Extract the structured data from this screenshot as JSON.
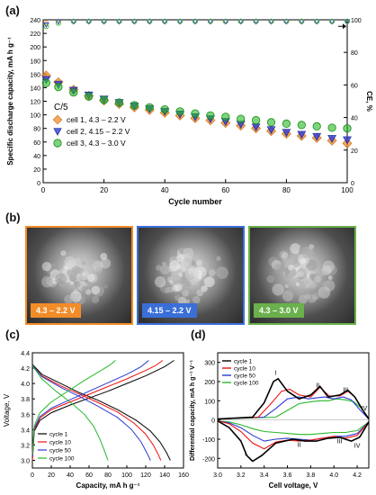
{
  "colors": {
    "orange": "#f28c28",
    "blue": "#2b39d6",
    "green": "#28b828",
    "black": "#000000",
    "gray": "#888888"
  },
  "panel_labels": {
    "a": "(a)",
    "b": "(b)",
    "c": "(c)",
    "d": "(d)"
  },
  "sem": {
    "images": [
      {
        "label": "4.3 – 2.2 V",
        "color": "#f28c28"
      },
      {
        "label": "4.15 – 2.2 V",
        "color": "#3a6fd8"
      },
      {
        "label": "4.3 – 3.0 V",
        "color": "#6ab04c"
      }
    ]
  },
  "chart_data": [
    {
      "type": "scatter",
      "panel": "a",
      "xlabel": "Cycle number",
      "ylabel": "Specific discharge capacity, mA h g⁻¹",
      "y2label": "CE, %",
      "xlim": [
        0,
        100
      ],
      "ylim": [
        0,
        240
      ],
      "y2lim": [
        0,
        100
      ],
      "xticks": [
        0,
        20,
        40,
        60,
        80,
        100
      ],
      "yticks": [
        0,
        20,
        40,
        60,
        80,
        100,
        120,
        140,
        160,
        180,
        200,
        220,
        240
      ],
      "y2ticks": [
        0,
        20,
        40,
        60,
        80,
        100
      ],
      "rate_label": "C/5",
      "legend_position": "bottom-left",
      "series": [
        {
          "name": "cell 1, 4.3 – 2.2 V",
          "color": "#f28c28",
          "marker": "diamond",
          "x": [
            1,
            5,
            10,
            15,
            20,
            25,
            30,
            35,
            40,
            45,
            50,
            55,
            60,
            65,
            70,
            75,
            80,
            85,
            90,
            95,
            100
          ],
          "y": [
            158,
            148,
            137,
            128,
            121,
            116,
            111,
            107,
            103,
            99,
            95,
            92,
            88,
            84,
            80,
            76,
            72,
            69,
            66,
            62,
            58
          ],
          "ce": [
            98,
            99,
            99,
            99,
            99,
            99,
            99,
            99,
            99,
            99,
            99,
            99,
            99,
            99,
            99,
            99,
            99,
            99,
            99,
            99,
            99
          ]
        },
        {
          "name": "cell 2, 4.15 – 2.2 V",
          "color": "#2b39d6",
          "marker": "triangle-down",
          "x": [
            1,
            5,
            10,
            15,
            20,
            25,
            30,
            35,
            40,
            45,
            50,
            55,
            60,
            65,
            70,
            75,
            80,
            85,
            90,
            95,
            100
          ],
          "y": [
            152,
            145,
            136,
            129,
            123,
            118,
            113,
            109,
            105,
            101,
            97,
            94,
            90,
            86,
            82,
            78,
            74,
            71,
            68,
            65,
            63
          ],
          "ce": [
            97,
            99,
            99,
            99,
            99,
            99,
            99,
            99,
            99,
            99,
            99,
            99,
            99,
            99,
            99,
            99,
            99,
            99,
            99,
            99,
            99
          ]
        },
        {
          "name": "cell 3, 4.3 – 3.0 V",
          "color": "#28b828",
          "marker": "circle",
          "x": [
            1,
            5,
            10,
            15,
            20,
            25,
            30,
            35,
            40,
            45,
            50,
            55,
            60,
            65,
            70,
            75,
            80,
            85,
            90,
            95,
            100
          ],
          "y": [
            147,
            141,
            133,
            127,
            122,
            118,
            114,
            111,
            108,
            105,
            102,
            99,
            97,
            94,
            92,
            89,
            87,
            85,
            83,
            81,
            80
          ],
          "ce": [
            96,
            98,
            99,
            99,
            99,
            99,
            99,
            99,
            99,
            99,
            99,
            99,
            99,
            99,
            99,
            99,
            99,
            99,
            99,
            99,
            99
          ]
        }
      ]
    },
    {
      "type": "line",
      "panel": "c",
      "xlabel": "Capacity, mA h g⁻¹",
      "ylabel": "Voltage, V",
      "xlim": [
        0,
        160
      ],
      "ylim": [
        2.9,
        4.4
      ],
      "xticks": [
        0,
        20,
        40,
        60,
        80,
        100,
        120,
        140,
        160
      ],
      "yticks": [
        3.0,
        3.2,
        3.4,
        3.6,
        3.8,
        4.0,
        4.2,
        4.4
      ],
      "legend_position": "bottom-left",
      "series": [
        {
          "name": "cycle 1",
          "color": "#000000",
          "charge": {
            "x": [
              0,
              2,
              8,
              20,
              40,
              60,
              80,
              100,
              120,
              140,
              150
            ],
            "y": [
              3.0,
              3.38,
              3.52,
              3.62,
              3.72,
              3.81,
              3.9,
              4.0,
              4.1,
              4.22,
              4.3
            ]
          },
          "discharge": {
            "x": [
              0,
              10,
              30,
              50,
              70,
              90,
              110,
              125,
              135,
              142,
              146
            ],
            "y": [
              4.25,
              4.12,
              4.0,
              3.88,
              3.78,
              3.66,
              3.52,
              3.38,
              3.24,
              3.1,
              3.0
            ]
          }
        },
        {
          "name": "cycle 10",
          "color": "#ee1111",
          "charge": {
            "x": [
              0,
              2,
              8,
              20,
              40,
              60,
              80,
              100,
              120,
              130,
              138
            ],
            "y": [
              3.0,
              3.4,
              3.55,
              3.66,
              3.76,
              3.86,
              3.96,
              4.06,
              4.17,
              4.23,
              4.3
            ]
          },
          "discharge": {
            "x": [
              0,
              10,
              30,
              50,
              70,
              90,
              108,
              120,
              128,
              133,
              136
            ],
            "y": [
              4.24,
              4.1,
              3.97,
              3.86,
              3.75,
              3.63,
              3.48,
              3.34,
              3.2,
              3.08,
              3.0
            ]
          }
        },
        {
          "name": "cycle 50",
          "color": "#2b39d6",
          "charge": {
            "x": [
              0,
              2,
              8,
              20,
              40,
              60,
              80,
              100,
              115,
              123
            ],
            "y": [
              3.05,
              3.42,
              3.57,
              3.68,
              3.79,
              3.9,
              4.01,
              4.12,
              4.22,
              4.3
            ]
          },
          "discharge": {
            "x": [
              0,
              10,
              30,
              50,
              70,
              90,
              105,
              115,
              121,
              125
            ],
            "y": [
              4.24,
              4.09,
              3.95,
              3.83,
              3.7,
              3.56,
              3.4,
              3.24,
              3.1,
              3.0
            ]
          }
        },
        {
          "name": "cycle 100",
          "color": "#28b828",
          "charge": {
            "x": [
              0,
              2,
              8,
              20,
              40,
              55,
              70,
              82,
              88
            ],
            "y": [
              3.08,
              3.45,
              3.62,
              3.76,
              3.92,
              4.04,
              4.15,
              4.24,
              4.3
            ]
          },
          "discharge": {
            "x": [
              0,
              10,
              25,
              40,
              55,
              65,
              72,
              77,
              80
            ],
            "y": [
              4.23,
              4.06,
              3.9,
              3.76,
              3.6,
              3.44,
              3.26,
              3.1,
              3.0
            ]
          }
        }
      ]
    },
    {
      "type": "line",
      "panel": "d",
      "xlabel": "Cell voltage, V",
      "ylabel": "Differential capacity, mA h g⁻¹ V⁻¹",
      "xlim": [
        3.0,
        4.3
      ],
      "ylim": [
        -250,
        350
      ],
      "xticks": [
        3.0,
        3.2,
        3.4,
        3.6,
        3.8,
        4.0,
        4.2
      ],
      "yticks": [
        -200,
        -100,
        0,
        100,
        200,
        300
      ],
      "legend_position": "top-left",
      "annotations": [
        {
          "text": "I",
          "x": 3.5,
          "y": 235
        },
        {
          "text": "II",
          "x": 3.86,
          "y": 170
        },
        {
          "text": "III",
          "x": 4.1,
          "y": 145
        },
        {
          "text": "IV",
          "x": 4.26,
          "y": 50
        },
        {
          "text": "I",
          "x": 3.24,
          "y": -185
        },
        {
          "text": "II",
          "x": 3.7,
          "y": -140
        },
        {
          "text": "III",
          "x": 4.05,
          "y": -120
        },
        {
          "text": "IV",
          "x": 4.2,
          "y": -145
        }
      ],
      "series": [
        {
          "name": "cycle 1",
          "color": "#000000",
          "charge": {
            "x": [
              3.0,
              3.3,
              3.4,
              3.48,
              3.52,
              3.6,
              3.7,
              3.8,
              3.88,
              3.95,
              4.05,
              4.12,
              4.18,
              4.24,
              4.3
            ],
            "y": [
              5,
              15,
              90,
              200,
              215,
              150,
              110,
              130,
              175,
              120,
              130,
              155,
              120,
              60,
              5
            ]
          },
          "discharge": {
            "x": [
              4.3,
              4.22,
              4.15,
              4.05,
              3.95,
              3.85,
              3.75,
              3.65,
              3.5,
              3.38,
              3.3,
              3.25,
              3.2,
              3.1,
              3.0
            ],
            "y": [
              -10,
              -90,
              -110,
              -90,
              -95,
              -110,
              -110,
              -100,
              -120,
              -185,
              -215,
              -185,
              -110,
              -40,
              -5
            ]
          }
        },
        {
          "name": "cycle 10",
          "color": "#ee1111",
          "charge": {
            "x": [
              3.0,
              3.35,
              3.45,
              3.55,
              3.62,
              3.7,
              3.8,
              3.88,
              3.96,
              4.05,
              4.12,
              4.18,
              4.24,
              4.3
            ],
            "y": [
              5,
              15,
              80,
              150,
              160,
              130,
              120,
              170,
              125,
              125,
              150,
              120,
              60,
              5
            ]
          },
          "discharge": {
            "x": [
              4.3,
              4.2,
              4.1,
              4.0,
              3.9,
              3.8,
              3.7,
              3.6,
              3.5,
              3.4,
              3.3,
              3.2,
              3.1,
              3.0
            ],
            "y": [
              -10,
              -80,
              -95,
              -85,
              -95,
              -105,
              -110,
              -105,
              -115,
              -150,
              -120,
              -60,
              -20,
              -5
            ]
          }
        },
        {
          "name": "cycle 50",
          "color": "#2b39d6",
          "charge": {
            "x": [
              3.0,
              3.4,
              3.5,
              3.6,
              3.7,
              3.78,
              3.85,
              3.92,
              4.0,
              4.08,
              4.15,
              4.22,
              4.3
            ],
            "y": [
              5,
              15,
              60,
              110,
              120,
              110,
              115,
              120,
              110,
              120,
              105,
              55,
              5
            ]
          },
          "discharge": {
            "x": [
              4.3,
              4.2,
              4.1,
              4.0,
              3.9,
              3.8,
              3.7,
              3.6,
              3.5,
              3.4,
              3.3,
              3.2,
              3.1,
              3.0
            ],
            "y": [
              -10,
              -70,
              -85,
              -85,
              -95,
              -105,
              -100,
              -95,
              -100,
              -110,
              -80,
              -40,
              -15,
              -5
            ]
          }
        },
        {
          "name": "cycle 100",
          "color": "#28b828",
          "charge": {
            "x": [
              3.0,
              3.5,
              3.6,
              3.7,
              3.8,
              3.88,
              3.95,
              4.02,
              4.1,
              4.17,
              4.24,
              4.3
            ],
            "y": [
              5,
              15,
              50,
              85,
              95,
              100,
              100,
              110,
              105,
              95,
              60,
              5
            ]
          },
          "discharge": {
            "x": [
              4.3,
              4.2,
              4.1,
              4.0,
              3.9,
              3.8,
              3.7,
              3.6,
              3.5,
              3.4,
              3.3,
              3.2,
              3.1,
              3.0
            ],
            "y": [
              -10,
              -55,
              -65,
              -65,
              -70,
              -75,
              -75,
              -70,
              -65,
              -60,
              -45,
              -25,
              -10,
              -5
            ]
          }
        }
      ]
    }
  ]
}
